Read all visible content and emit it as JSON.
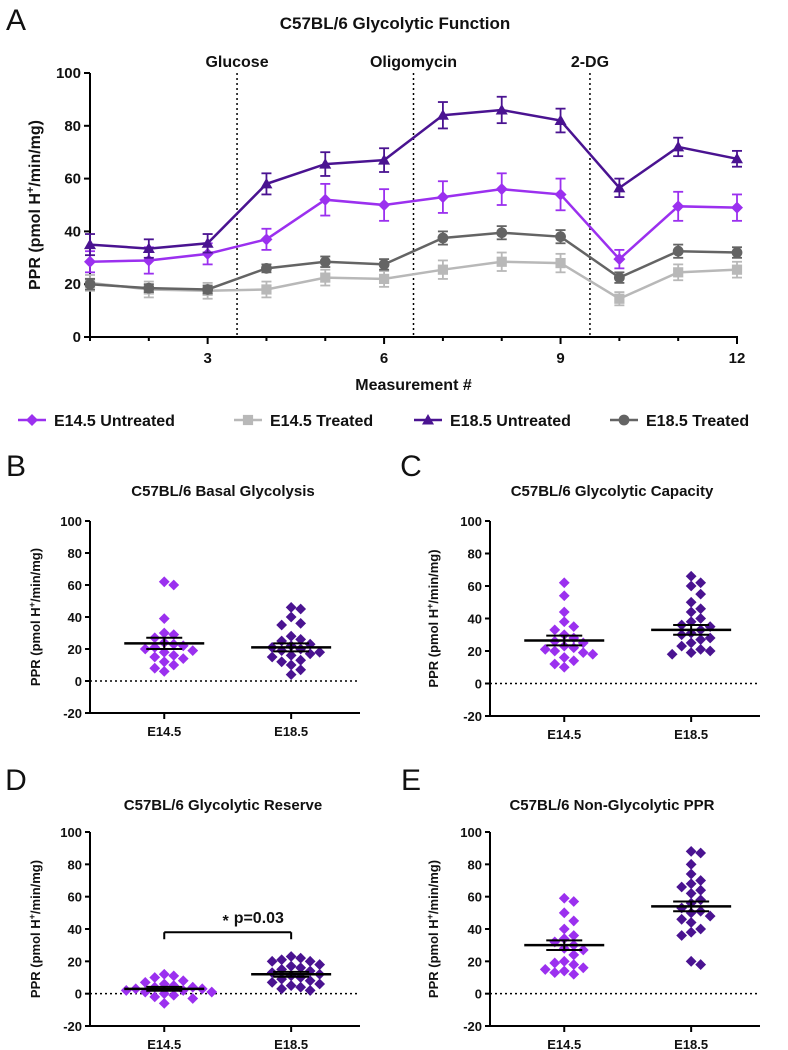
{
  "colors": {
    "e145_untreated": "#9b30ef",
    "e145_treated": "#b8b8b8",
    "e185_untreated": "#4a1391",
    "e185_treated": "#646464",
    "axis": "#000000"
  },
  "panel_labels": [
    "A",
    "B",
    "C",
    "D",
    "E"
  ],
  "chart_data": [
    {
      "id": "A",
      "type": "line",
      "title": "C57BL/6 Glycolytic Function",
      "xlabel": "Measurement #",
      "ylabel_pre": "PPR (pmol H",
      "ylabel_sup": "+",
      "ylabel_post": "/min/mg)",
      "xlim": [
        1,
        12
      ],
      "ylim": [
        0,
        100
      ],
      "xticks": [
        "3",
        "6",
        "9",
        "12"
      ],
      "yticks": [
        "0",
        "20",
        "40",
        "60",
        "80",
        "100"
      ],
      "events": [
        {
          "label": "Glucose",
          "x": 3.5
        },
        {
          "label": "Oligomycin",
          "x": 6.5
        },
        {
          "label": "2-DG",
          "x": 9.5
        }
      ],
      "x": [
        1,
        2,
        3,
        4,
        5,
        6,
        7,
        8,
        9,
        10,
        11,
        12
      ],
      "series": [
        {
          "name": "E14.5 Untreated",
          "color": "#9b30ef",
          "marker": "diamond",
          "values": [
            28.5,
            29,
            31.5,
            37,
            52,
            50,
            53,
            56,
            54,
            29.5,
            49.5,
            49
          ],
          "errors": [
            4,
            5,
            4,
            4,
            6,
            6,
            6,
            6,
            6,
            3.5,
            5.5,
            5
          ]
        },
        {
          "name": "E14.5 Treated",
          "color": "#b8b8b8",
          "marker": "square",
          "values": [
            20.5,
            18,
            17.5,
            18,
            22.5,
            22,
            25.5,
            28.5,
            28,
            14.5,
            24.5,
            25.5
          ],
          "errors": [
            3,
            3,
            3,
            3,
            3,
            3,
            3.5,
            3.5,
            3.5,
            2.5,
            3,
            3
          ]
        },
        {
          "name": "E18.5 Untreated",
          "color": "#4a1391",
          "marker": "triangle",
          "values": [
            35,
            33.5,
            35.5,
            58,
            65.5,
            67,
            84,
            86,
            82,
            56.5,
            72,
            67.5
          ],
          "errors": [
            4,
            3.5,
            3.5,
            4,
            4.5,
            4.5,
            5,
            5,
            4.5,
            3.5,
            3.5,
            3
          ]
        },
        {
          "name": "E18.5 Treated",
          "color": "#646464",
          "marker": "circle",
          "values": [
            20,
            18.5,
            18,
            26,
            28.5,
            27.5,
            37.5,
            39.5,
            38,
            22.5,
            32.5,
            32
          ],
          "errors": [
            2,
            1.5,
            1.5,
            1.5,
            2,
            2,
            2.5,
            2.5,
            2.5,
            2,
            2.5,
            2
          ]
        }
      ]
    },
    {
      "id": "B",
      "type": "scatter",
      "title": "C57BL/6 Basal Glycolysis",
      "ylabel_pre": "PPR (pmol H",
      "ylabel_sup": "+",
      "ylabel_post": "/min/mg)",
      "ylim": [
        -20,
        100
      ],
      "yticks": [
        "-20",
        "0",
        "20",
        "40",
        "60",
        "80",
        "100"
      ],
      "categories": [
        "E14.5",
        "E18.5"
      ],
      "groups": [
        {
          "name": "E14.5",
          "color": "#9b30ef",
          "mean": 23.5,
          "sem": 3.5,
          "points": [
            62,
            60,
            39,
            30,
            29,
            27,
            24,
            23,
            22,
            21,
            20,
            19,
            18,
            16,
            15,
            14,
            12,
            10,
            8,
            6
          ]
        },
        {
          "name": "E18.5",
          "color": "#4a1391",
          "mean": 21,
          "sem": 2.5,
          "points": [
            46,
            45,
            40,
            36,
            35,
            28,
            26,
            25,
            23,
            22,
            21,
            20,
            19,
            18,
            17,
            16,
            15,
            13,
            12,
            10,
            7,
            4
          ]
        }
      ]
    },
    {
      "id": "C",
      "type": "scatter",
      "title": "C57BL/6 Glycolytic Capacity",
      "ylabel_pre": "PPR (pmol H",
      "ylabel_sup": "+",
      "ylabel_post": "/min/mg)",
      "ylim": [
        -20,
        100
      ],
      "yticks": [
        "-20",
        "0",
        "20",
        "40",
        "60",
        "80",
        "100"
      ],
      "categories": [
        "E14.5",
        "E18.5"
      ],
      "groups": [
        {
          "name": "E14.5",
          "color": "#9b30ef",
          "mean": 26.5,
          "sem": 3,
          "points": [
            62,
            54,
            44,
            38,
            35,
            33,
            30,
            28,
            26,
            25,
            23,
            22,
            21,
            20,
            19,
            18,
            16,
            14,
            12,
            10
          ]
        },
        {
          "name": "E18.5",
          "color": "#4a1391",
          "mean": 33,
          "sem": 3,
          "points": [
            66,
            62,
            60,
            55,
            50,
            46,
            44,
            40,
            38,
            36,
            35,
            33,
            31,
            30,
            28,
            27,
            25,
            23,
            21,
            20,
            19,
            18
          ]
        }
      ]
    },
    {
      "id": "D",
      "type": "scatter",
      "title": "C57BL/6 Glycolytic Reserve",
      "ylabel_pre": "PPR (pmol H",
      "ylabel_sup": "+",
      "ylabel_post": "/min/mg)",
      "ylim": [
        -20,
        100
      ],
      "yticks": [
        "-20",
        "0",
        "20",
        "40",
        "60",
        "80",
        "100"
      ],
      "categories": [
        "E14.5",
        "E18.5"
      ],
      "annotation": {
        "star": "*",
        "text": "p=0.03",
        "y": 38
      },
      "groups": [
        {
          "name": "E14.5",
          "color": "#9b30ef",
          "mean": 3,
          "sem": 1.2,
          "points": [
            12,
            11,
            10,
            8,
            7,
            6,
            5,
            4,
            4,
            3,
            3,
            2,
            2,
            1,
            1,
            0,
            -1,
            -2,
            -3,
            -6
          ]
        },
        {
          "name": "E18.5",
          "color": "#4a1391",
          "mean": 12,
          "sem": 1.5,
          "points": [
            23,
            22,
            21,
            20,
            20,
            18,
            17,
            16,
            15,
            14,
            13,
            12,
            11,
            10,
            9,
            8,
            7,
            6,
            5,
            4,
            3,
            2
          ]
        }
      ]
    },
    {
      "id": "E",
      "type": "scatter",
      "title": "C57BL/6 Non-Glycolytic PPR",
      "ylabel_pre": "PPR (pmol H",
      "ylabel_sup": "+",
      "ylabel_post": "/min/mg)",
      "ylim": [
        -20,
        100
      ],
      "yticks": [
        "-20",
        "0",
        "20",
        "40",
        "60",
        "80",
        "100"
      ],
      "categories": [
        "E14.5",
        "E18.5"
      ],
      "groups": [
        {
          "name": "E14.5",
          "color": "#9b30ef",
          "mean": 30,
          "sem": 3,
          "points": [
            59,
            57,
            50,
            45,
            40,
            36,
            34,
            32,
            30,
            28,
            27,
            24,
            20,
            19,
            18,
            16,
            15,
            14,
            13,
            12
          ]
        },
        {
          "name": "E18.5",
          "color": "#4a1391",
          "mean": 54,
          "sem": 3,
          "points": [
            88,
            87,
            80,
            74,
            70,
            68,
            66,
            64,
            62,
            58,
            56,
            53,
            51,
            50,
            48,
            46,
            44,
            40,
            38,
            36,
            20,
            18
          ]
        }
      ]
    }
  ]
}
